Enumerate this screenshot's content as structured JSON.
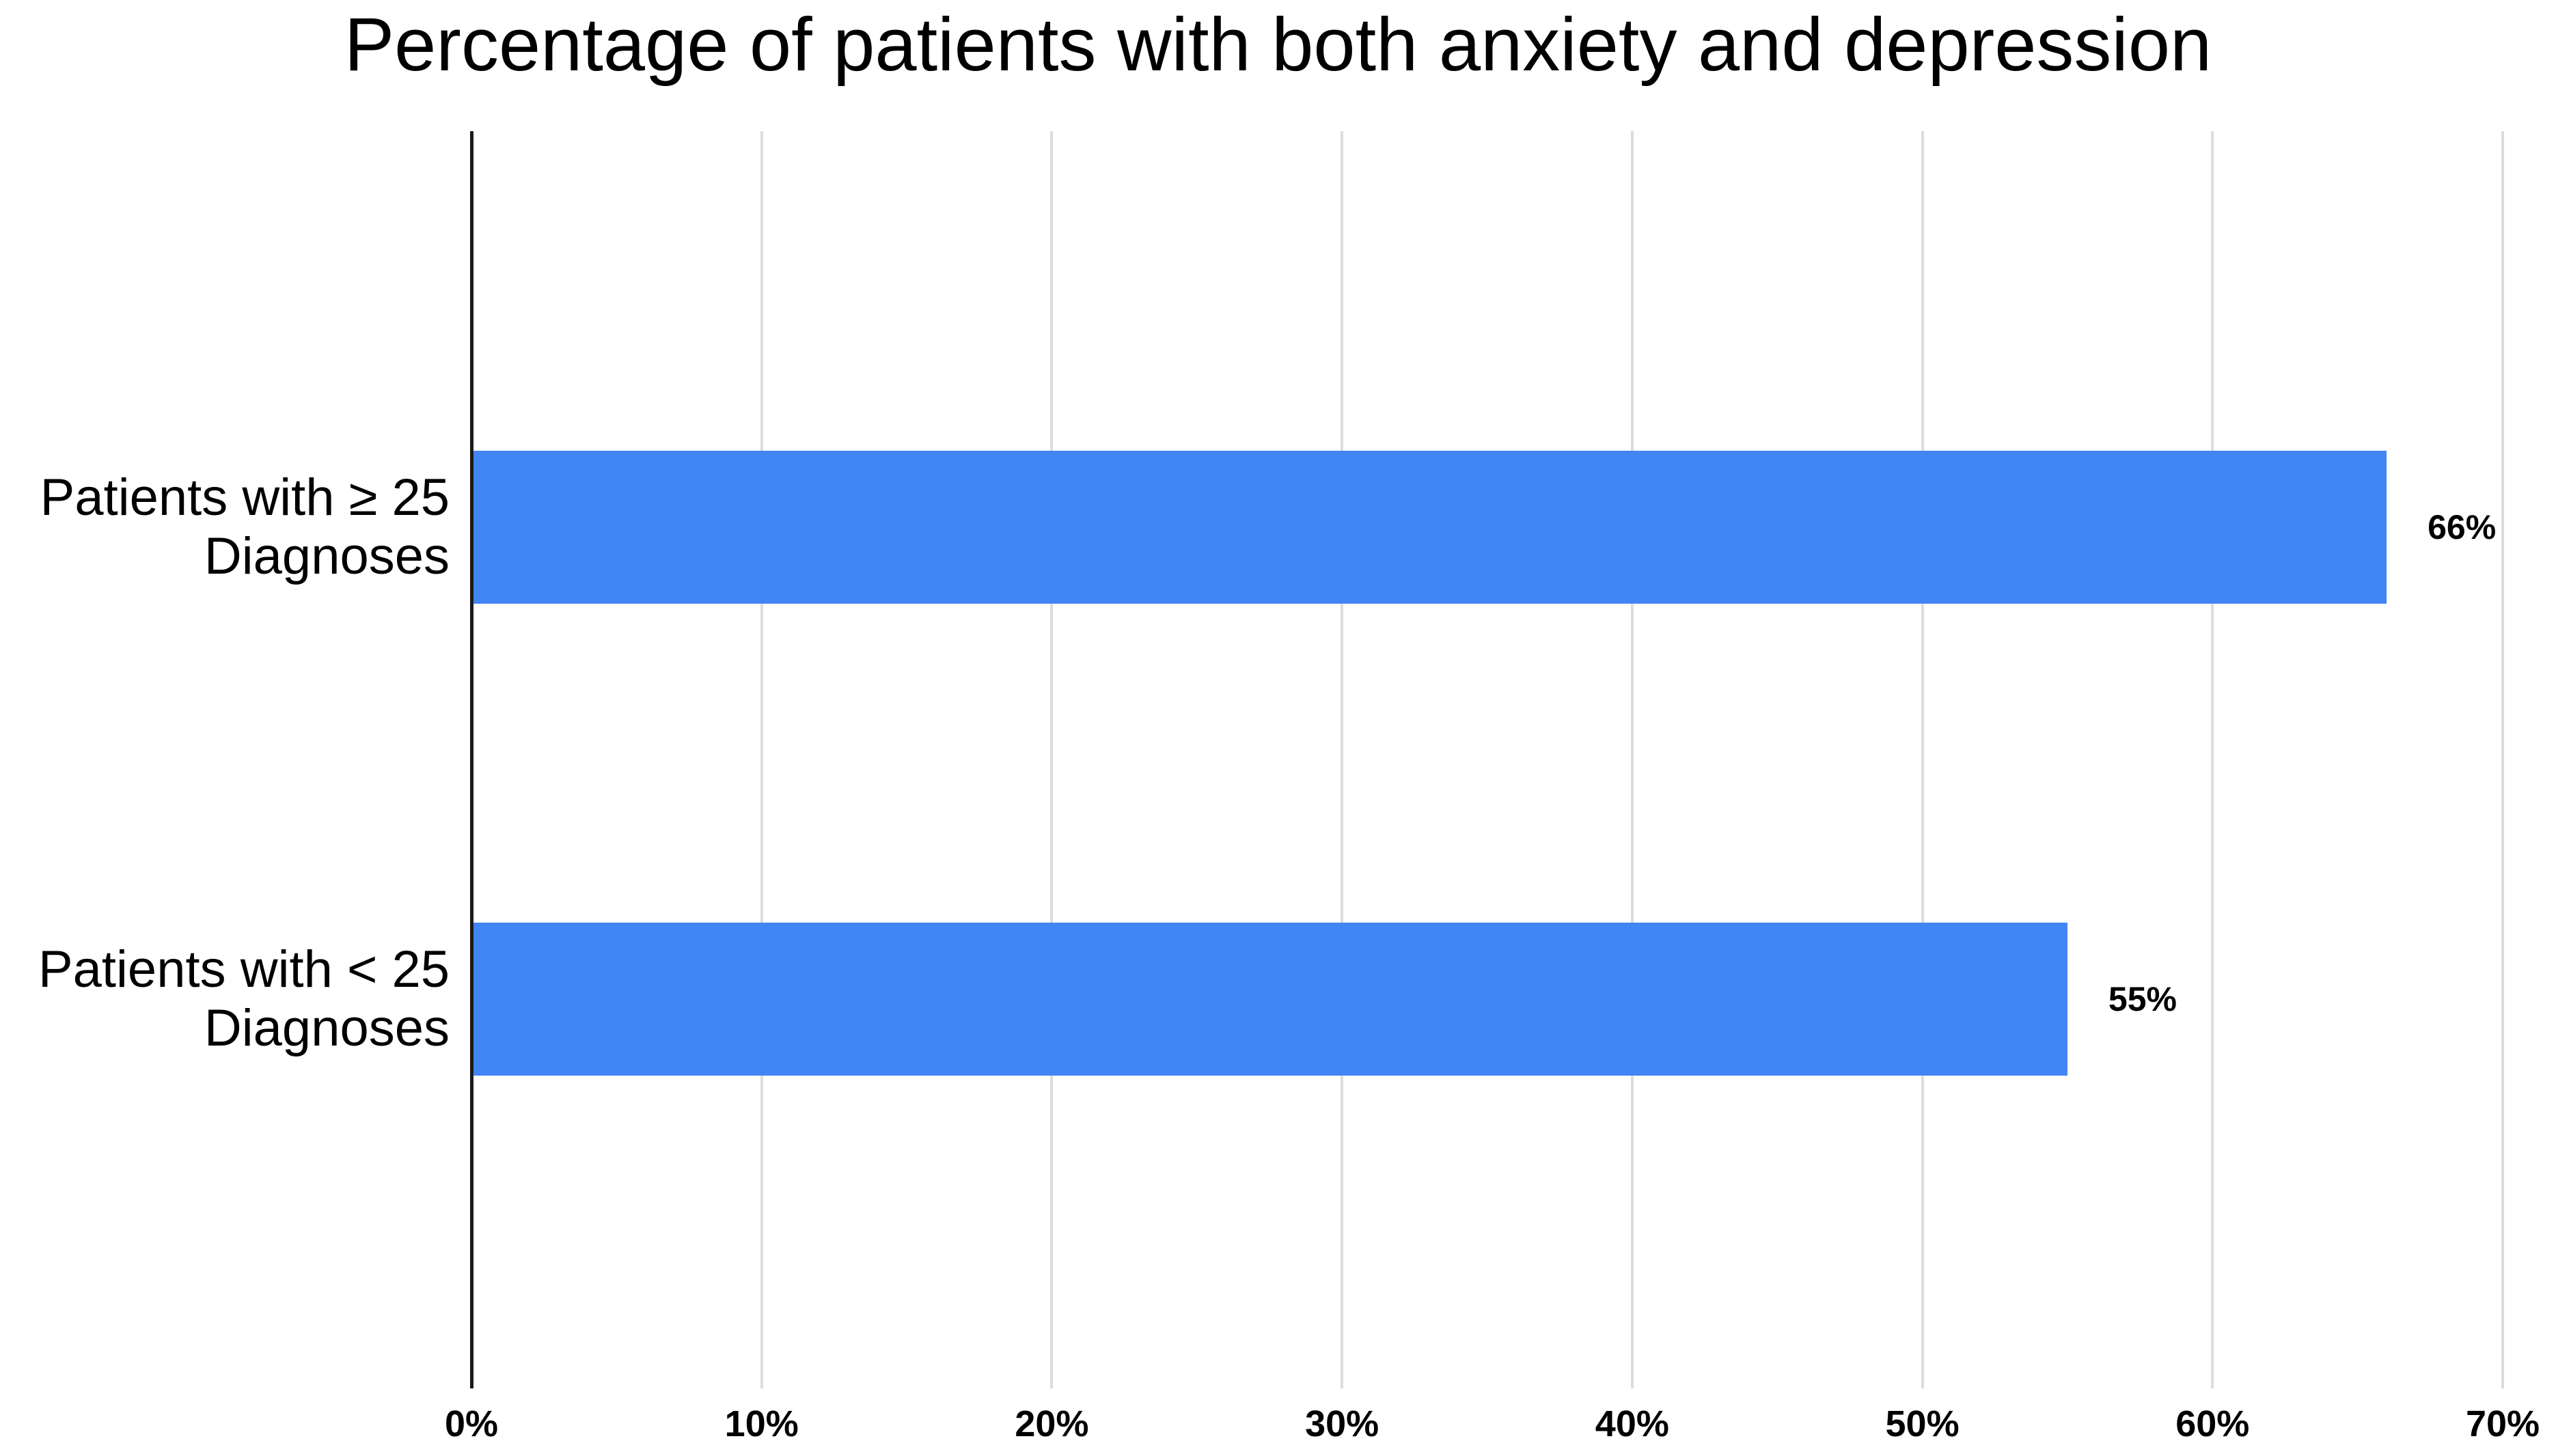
{
  "chart_data": {
    "type": "bar",
    "orientation": "horizontal",
    "title": "Percentage of patients with both anxiety and depression",
    "categories": [
      "Patients with ≥ 25 Diagnoses",
      "Patients with < 25 Diagnoses"
    ],
    "category_lines": [
      [
        "Patients with ≥ 25",
        "Diagnoses"
      ],
      [
        "Patients with < 25",
        "Diagnoses"
      ]
    ],
    "series": [
      {
        "name": "Percentage of patients with both anxiety and depression",
        "values": [
          66,
          55
        ],
        "data_labels": [
          "66%",
          "55%"
        ]
      }
    ],
    "xlabel": "",
    "ylabel": "",
    "xlim": [
      0,
      70
    ],
    "x_tick_labels": [
      "0%",
      "10%",
      "20%",
      "30%",
      "40%",
      "50%",
      "60%",
      "70%"
    ],
    "x_tick_values": [
      0,
      10,
      20,
      30,
      40,
      50,
      60,
      70
    ],
    "grid": "vertical-gridlines-on",
    "legend": "none",
    "bar_color": "#4285f4",
    "gridline_color": "#dcdcdc",
    "baseline_color": "#1a1a1a",
    "text_color": "#000000",
    "background_color": "#ffffff"
  }
}
